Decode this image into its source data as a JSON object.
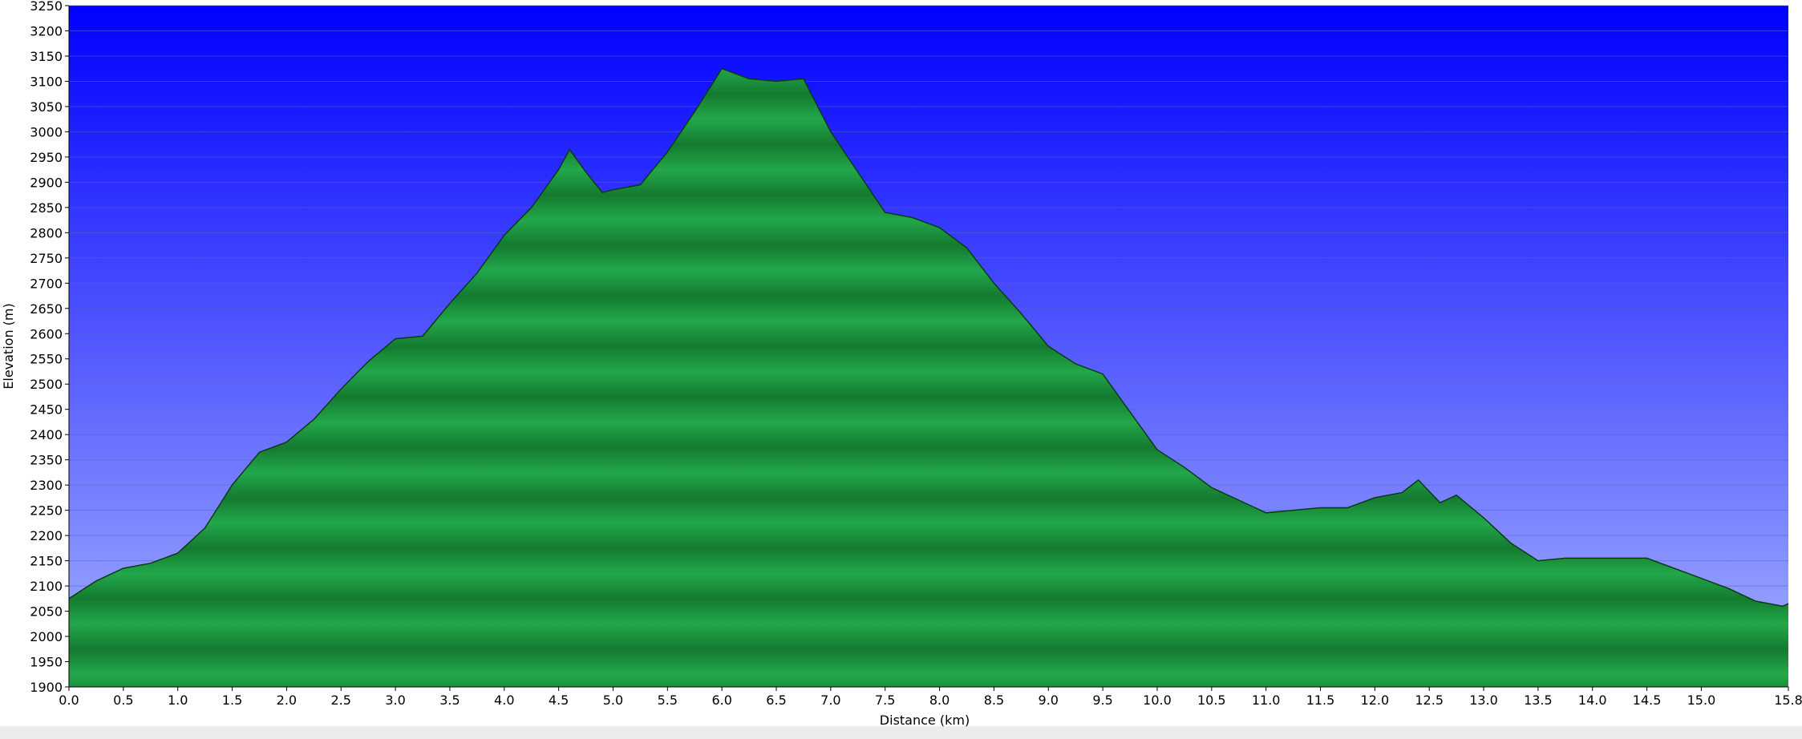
{
  "chart_data": {
    "type": "area",
    "x_label": "Distance  (km)",
    "y_label": "Elevation (m)",
    "x": [
      0,
      0.25,
      0.5,
      0.75,
      1.0,
      1.25,
      1.5,
      1.75,
      2.0,
      2.25,
      2.5,
      2.75,
      3.0,
      3.25,
      3.5,
      3.75,
      4.0,
      4.25,
      4.5,
      4.6,
      4.75,
      4.9,
      5.0,
      5.25,
      5.5,
      5.75,
      6.0,
      6.25,
      6.5,
      6.75,
      7.0,
      7.25,
      7.5,
      7.75,
      8.0,
      8.25,
      8.5,
      8.75,
      9.0,
      9.25,
      9.5,
      9.75,
      10.0,
      10.25,
      10.5,
      10.75,
      11.0,
      11.25,
      11.5,
      11.75,
      12.0,
      12.25,
      12.4,
      12.6,
      12.75,
      13.0,
      13.25,
      13.5,
      13.75,
      14.0,
      14.5,
      14.75,
      15.0,
      15.25,
      15.5,
      15.75,
      15.8
    ],
    "values": [
      2075,
      2110,
      2135,
      2145,
      2165,
      2215,
      2300,
      2365,
      2385,
      2430,
      2490,
      2545,
      2590,
      2595,
      2660,
      2720,
      2795,
      2850,
      2925,
      2965,
      2920,
      2880,
      2885,
      2895,
      2960,
      3040,
      3125,
      3105,
      3100,
      3105,
      3000,
      2920,
      2840,
      2830,
      2810,
      2770,
      2700,
      2640,
      2575,
      2540,
      2520,
      2445,
      2370,
      2335,
      2295,
      2270,
      2245,
      2250,
      2255,
      2255,
      2275,
      2285,
      2310,
      2265,
      2280,
      2235,
      2185,
      2150,
      2155,
      2155,
      2155,
      2135,
      2115,
      2095,
      2070,
      2060,
      2065
    ],
    "color": "#1e9e3e",
    "xlim": [
      0,
      15.8
    ],
    "xticks": [
      {
        "value": 0,
        "label": "0.0"
      },
      {
        "value": 0.5,
        "label": "0.5"
      },
      {
        "value": 1,
        "label": "1.0"
      },
      {
        "value": 1.5,
        "label": "1.5"
      },
      {
        "value": 2,
        "label": "2.0"
      },
      {
        "value": 2.5,
        "label": "2.5"
      },
      {
        "value": 3,
        "label": "3.0"
      },
      {
        "value": 3.5,
        "label": "3.5"
      },
      {
        "value": 4,
        "label": "4.0"
      },
      {
        "value": 4.5,
        "label": "4.5"
      },
      {
        "value": 5,
        "label": "5.0"
      },
      {
        "value": 5.5,
        "label": "5.5"
      },
      {
        "value": 6,
        "label": "6.0"
      },
      {
        "value": 6.5,
        "label": "6.5"
      },
      {
        "value": 7,
        "label": "7.0"
      },
      {
        "value": 7.5,
        "label": "7.5"
      },
      {
        "value": 8,
        "label": "8.0"
      },
      {
        "value": 8.5,
        "label": "8.5"
      },
      {
        "value": 9,
        "label": "9.0"
      },
      {
        "value": 9.5,
        "label": "9.5"
      },
      {
        "value": 10,
        "label": "10.0"
      },
      {
        "value": 10.5,
        "label": "10.5"
      },
      {
        "value": 11,
        "label": "11.0"
      },
      {
        "value": 11.5,
        "label": "11.5"
      },
      {
        "value": 12,
        "label": "12.0"
      },
      {
        "value": 12.5,
        "label": "12.5"
      },
      {
        "value": 13,
        "label": "13.0"
      },
      {
        "value": 13.5,
        "label": "13.5"
      },
      {
        "value": 14,
        "label": "14.0"
      },
      {
        "value": 14.5,
        "label": "14.5"
      },
      {
        "value": 15,
        "label": "15.0"
      },
      15.8
    ],
    "ylim": [
      1900,
      3250
    ],
    "yticks": [
      1900,
      1950,
      2000,
      2050,
      2100,
      2150,
      2200,
      2250,
      2300,
      2350,
      2400,
      2450,
      2500,
      2550,
      2600,
      2650,
      2700,
      2750,
      2800,
      2850,
      2900,
      2950,
      3000,
      3050,
      3100,
      3150,
      3200,
      3250
    ],
    "grid": true
  }
}
